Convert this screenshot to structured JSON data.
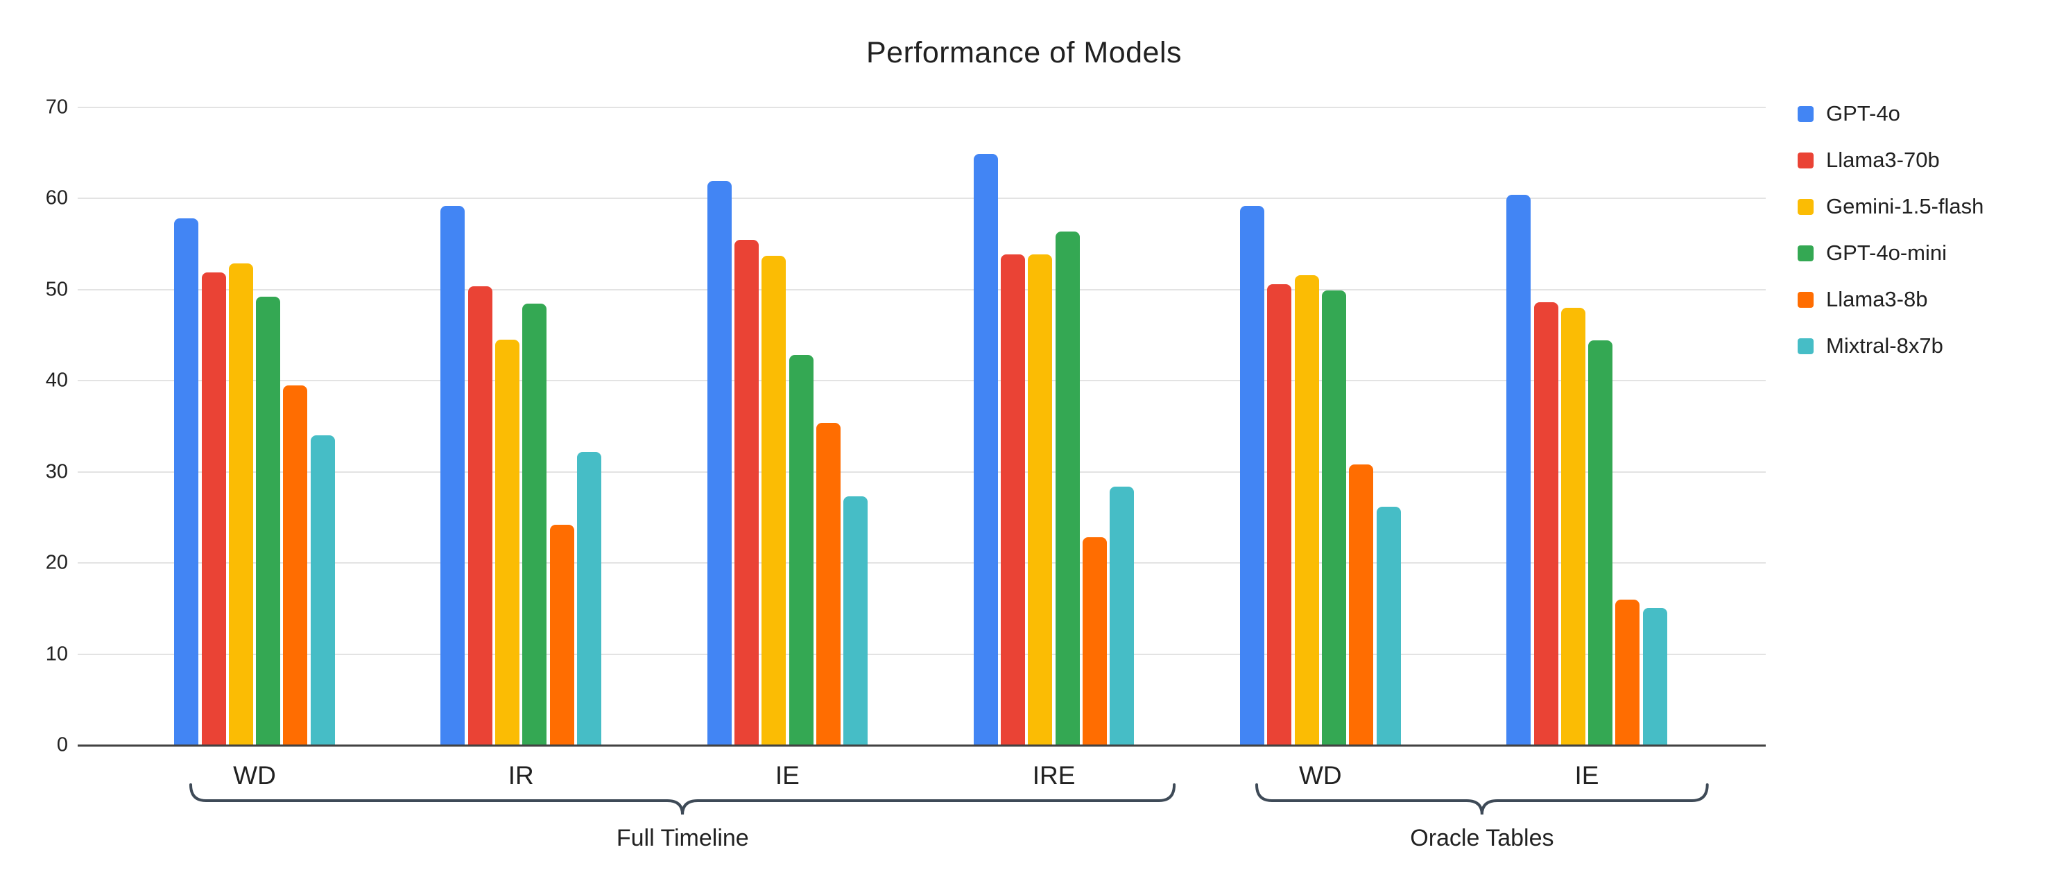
{
  "chart_data": {
    "type": "bar",
    "title": "Performance of Models",
    "categories": [
      "WD",
      "IR",
      "IE",
      "IRE",
      "WD",
      "IE"
    ],
    "series": [
      {
        "name": "GPT-4o",
        "color": "#4285F4",
        "values": [
          57.8,
          59.2,
          61.9,
          64.9,
          59.2,
          60.4
        ]
      },
      {
        "name": "Llama3-70b",
        "color": "#EA4335",
        "values": [
          51.9,
          50.4,
          55.5,
          53.9,
          50.6,
          48.6
        ]
      },
      {
        "name": "Gemini-1.5-flash",
        "color": "#FBBC04",
        "values": [
          52.9,
          44.5,
          53.7,
          53.9,
          51.6,
          48.0
        ]
      },
      {
        "name": "GPT-4o-mini",
        "color": "#34A853",
        "values": [
          49.2,
          48.5,
          42.8,
          56.4,
          49.9,
          44.4
        ]
      },
      {
        "name": "Llama3-8b",
        "color": "#FF6D01",
        "values": [
          39.5,
          24.2,
          35.4,
          22.8,
          30.8,
          16.0
        ]
      },
      {
        "name": "Mixtral-8x7b",
        "color": "#46BDC6",
        "values": [
          34.0,
          32.2,
          27.3,
          28.4,
          26.2,
          15.1
        ]
      }
    ],
    "y_axis": {
      "min": 0,
      "max": 70,
      "tick_step": 10,
      "tick_labels": [
        "0",
        "10",
        "20",
        "30",
        "40",
        "50",
        "60",
        "70"
      ]
    },
    "group_brackets": [
      {
        "label": "Full Timeline",
        "category_indices": [
          0,
          3
        ]
      },
      {
        "label": "Oracle Tables",
        "category_indices": [
          4,
          5
        ]
      }
    ],
    "legend_position": "right",
    "grid": true,
    "brace_color": "#3e4a57"
  }
}
